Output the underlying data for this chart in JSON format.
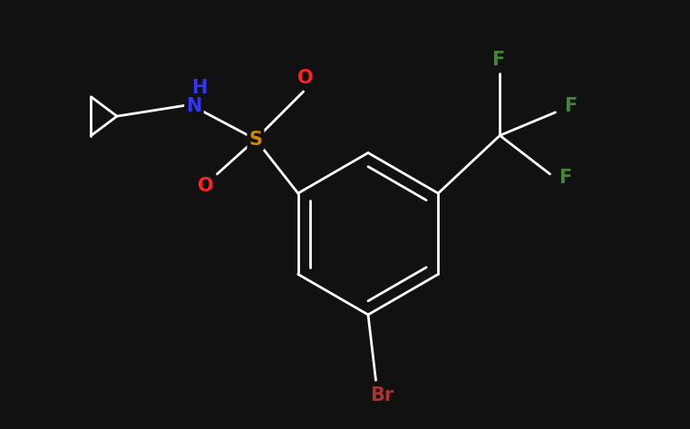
{
  "background_color": "#111111",
  "bond_color": "#ffffff",
  "atom_colors": {
    "N": "#3333ff",
    "S": "#cc8800",
    "O": "#ff2222",
    "F": "#448833",
    "Br": "#aa3333"
  },
  "figsize": [
    7.61,
    4.73
  ],
  "dpi": 100
}
